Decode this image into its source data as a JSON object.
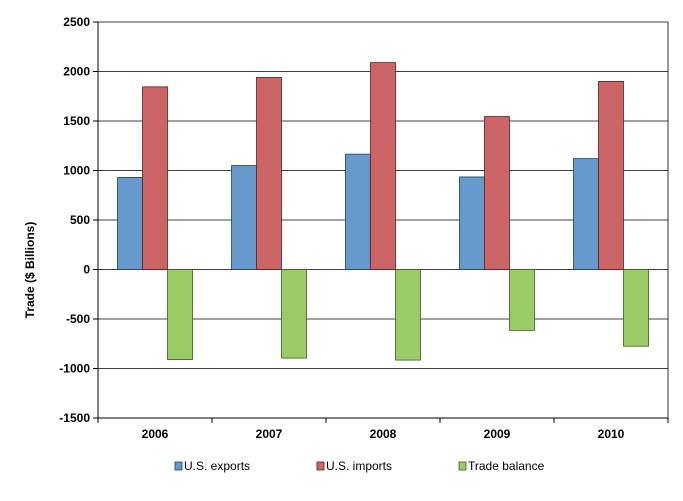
{
  "chart_data": {
    "type": "bar",
    "title": "",
    "xlabel": "",
    "ylabel": "Trade ($ Billions)",
    "categories": [
      "2006",
      "2007",
      "2008",
      "2009",
      "2010"
    ],
    "series": [
      {
        "name": "U.S. exports",
        "values": [
          930,
          1050,
          1165,
          935,
          1120
        ],
        "color": "#6699CC",
        "stroke": "#1F3F66"
      },
      {
        "name": "U.S. imports",
        "values": [
          1845,
          1940,
          2090,
          1545,
          1900
        ],
        "color": "#CC6666",
        "stroke": "#5C1F1F"
      },
      {
        "name": "Trade balance",
        "values": [
          -910,
          -895,
          -915,
          -615,
          -775
        ],
        "color": "#99CC66",
        "stroke": "#3D5C1F"
      }
    ],
    "ylim": [
      -1500,
      2500
    ],
    "yticks": [
      2500,
      2000,
      1500,
      1000,
      500,
      0,
      -500,
      -1000,
      -1500
    ],
    "ytick_labels": [
      "2500",
      "2000",
      "1500",
      "1000",
      "500",
      "0",
      "-500",
      "-1000",
      "-1500"
    ],
    "grid": true,
    "legend": "bottom"
  }
}
